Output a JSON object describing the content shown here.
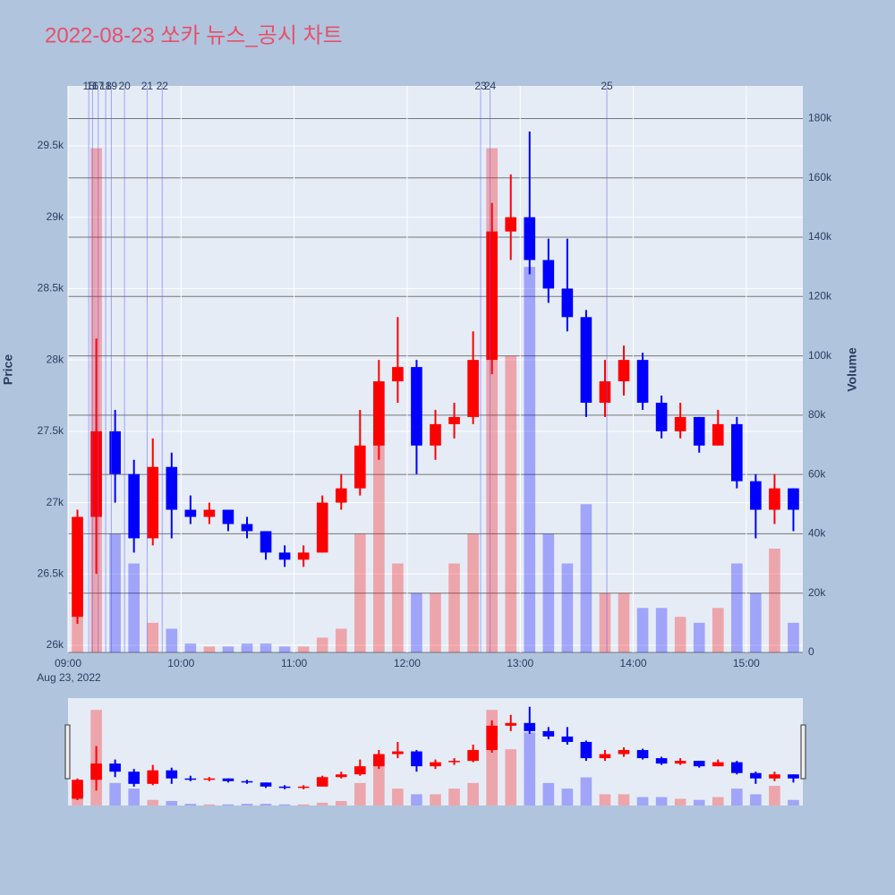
{
  "chart_data": {
    "type": "candlestick",
    "title": "2022-08-23 쏘카 뉴스_공시 차트",
    "y_label": "Price",
    "y2_label": "Volume",
    "x": [
      "2022-08-23 09:00",
      "2022-08-23 09:10",
      "2022-08-23 09:20",
      "2022-08-23 09:30",
      "2022-08-23 09:40",
      "2022-08-23 09:50",
      "2022-08-23 10:00",
      "2022-08-23 10:10",
      "2022-08-23 10:20",
      "2022-08-23 10:30",
      "2022-08-23 10:40",
      "2022-08-23 10:50",
      "2022-08-23 11:00",
      "2022-08-23 11:10",
      "2022-08-23 11:20",
      "2022-08-23 11:30",
      "2022-08-23 11:40",
      "2022-08-23 11:50",
      "2022-08-23 12:00",
      "2022-08-23 12:10",
      "2022-08-23 12:20",
      "2022-08-23 12:30",
      "2022-08-23 12:40",
      "2022-08-23 12:50",
      "2022-08-23 13:00",
      "2022-08-23 13:10",
      "2022-08-23 13:20",
      "2022-08-23 13:30",
      "2022-08-23 13:40",
      "2022-08-23 13:50",
      "2022-08-23 14:00",
      "2022-08-23 14:10",
      "2022-08-23 14:20",
      "2022-08-23 14:30",
      "2022-08-23 14:40",
      "2022-08-23 14:50",
      "2022-08-23 15:00",
      "2022-08-23 15:10",
      "2022-08-23 15:20"
    ],
    "open": [
      26200,
      26900,
      27500,
      27200,
      26750,
      27250,
      26950,
      26900,
      26950,
      26850,
      26800,
      26650,
      26600,
      26650,
      27000,
      27100,
      27400,
      27850,
      27950,
      27400,
      27550,
      27600,
      28000,
      28900,
      29000,
      28700,
      28500,
      28300,
      27700,
      27850,
      28000,
      27700,
      27500,
      27600,
      27400,
      27550,
      27150,
      26950,
      27100
    ],
    "high": [
      26950,
      28150,
      27650,
      27300,
      27450,
      27350,
      27050,
      27000,
      26950,
      26900,
      26800,
      26700,
      26700,
      27050,
      27200,
      27650,
      28000,
      28300,
      28000,
      27650,
      27700,
      28200,
      29100,
      29300,
      29600,
      28850,
      28850,
      28350,
      28000,
      28100,
      28050,
      27750,
      27700,
      27600,
      27650,
      27600,
      27200,
      27200,
      27100
    ],
    "low": [
      26150,
      26500,
      27000,
      26650,
      26700,
      26750,
      26850,
      26850,
      26800,
      26750,
      26600,
      26550,
      26550,
      26650,
      26950,
      27050,
      27300,
      27700,
      27200,
      27300,
      27450,
      27550,
      27900,
      28700,
      28600,
      28400,
      28200,
      27600,
      27600,
      27750,
      27650,
      27450,
      27450,
      27350,
      27400,
      27100,
      26750,
      26850,
      26800
    ],
    "close": [
      26900,
      27500,
      27200,
      26750,
      27250,
      26950,
      26900,
      26950,
      26850,
      26800,
      26650,
      26600,
      26650,
      27000,
      27100,
      27400,
      27850,
      27950,
      27400,
      27550,
      27600,
      28000,
      28900,
      29000,
      28700,
      28500,
      28300,
      27700,
      27850,
      28000,
      27700,
      27500,
      27600,
      27400,
      27550,
      27150,
      26950,
      27100,
      26950
    ],
    "volume": [
      40000,
      170000,
      40000,
      30000,
      10000,
      8000,
      3000,
      2000,
      2000,
      3000,
      3000,
      2000,
      2000,
      5000,
      8000,
      40000,
      90000,
      30000,
      20000,
      20000,
      30000,
      40000,
      170000,
      100000,
      130000,
      40000,
      30000,
      50000,
      20000,
      20000,
      15000,
      15000,
      12000,
      10000,
      15000,
      30000,
      20000,
      35000,
      10000
    ],
    "increasing_color": "#ff0000",
    "decreasing_color": "#0000ff",
    "xlim": [
      "2022-08-23 09:00",
      "2022-08-23 15:30"
    ],
    "xticks": [
      {
        "value": "2022-08-23 09:00",
        "label": "09:00"
      },
      {
        "value": "2022-08-23 10:00",
        "label": "10:00"
      },
      {
        "value": "2022-08-23 11:00",
        "label": "11:00"
      },
      {
        "value": "2022-08-23 12:00",
        "label": "12:00"
      },
      {
        "value": "2022-08-23 13:00",
        "label": "13:00"
      },
      {
        "value": "2022-08-23 14:00",
        "label": "14:00"
      },
      {
        "value": "2022-08-23 15:00",
        "label": "15:00"
      }
    ],
    "x_date_label": "Aug 23, 2022",
    "ylim": [
      25950,
      29920
    ],
    "yticks": [
      {
        "value": 26000,
        "label": "26k"
      },
      {
        "value": 26500,
        "label": "26.5k"
      },
      {
        "value": 27000,
        "label": "27k"
      },
      {
        "value": 27500,
        "label": "27.5k"
      },
      {
        "value": 28000,
        "label": "28k"
      },
      {
        "value": 28500,
        "label": "28.5k"
      },
      {
        "value": 29000,
        "label": "29k"
      },
      {
        "value": 29500,
        "label": "29.5k"
      }
    ],
    "y2lim": [
      0,
      191000
    ],
    "y2ticks": [
      0,
      {
        "value": 20000,
        "label": "20k"
      },
      {
        "value": 40000,
        "label": "40k"
      },
      {
        "value": 60000,
        "label": "60k"
      },
      {
        "value": 80000,
        "label": "80k"
      },
      {
        "value": 100000,
        "label": "100k"
      },
      {
        "value": 120000,
        "label": "120k"
      },
      {
        "value": 140000,
        "label": "140k"
      },
      {
        "value": 160000,
        "label": "160k"
      },
      {
        "value": 180000,
        "label": "180k"
      }
    ],
    "events": [
      {
        "label": "15",
        "x": "2022-08-23 09:11"
      },
      {
        "label": "16",
        "x": "2022-08-23 09:13"
      },
      {
        "label": "17",
        "x": "2022-08-23 09:16"
      },
      {
        "label": "18",
        "x": "2022-08-23 09:20"
      },
      {
        "label": "19",
        "x": "2022-08-23 09:23"
      },
      {
        "label": "20",
        "x": "2022-08-23 09:30"
      },
      {
        "label": "21",
        "x": "2022-08-23 09:42"
      },
      {
        "label": "22",
        "x": "2022-08-23 09:50"
      },
      {
        "label": "23",
        "x": "2022-08-23 12:39"
      },
      {
        "label": "24",
        "x": "2022-08-23 12:44"
      },
      {
        "label": "25",
        "x": "2022-08-23 13:46"
      }
    ],
    "grid": true,
    "rangeslider": true
  }
}
